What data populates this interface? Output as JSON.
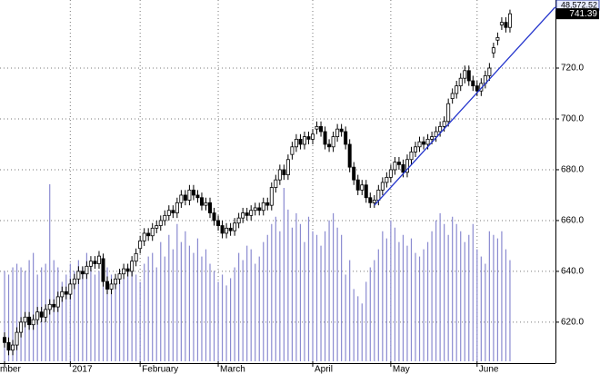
{
  "chart_data": {
    "type": "candlestick",
    "top_label": "48,572.52",
    "last_label": "741.39",
    "categories": [
      "mber",
      null,
      null,
      null,
      null,
      null,
      null,
      null,
      null,
      null,
      null,
      null,
      null,
      null,
      null,
      null,
      "2017",
      null,
      null,
      null,
      null,
      null,
      null,
      null,
      null,
      null,
      null,
      null,
      null,
      null,
      null,
      null,
      null,
      "February",
      null,
      null,
      null,
      null,
      null,
      null,
      null,
      null,
      null,
      null,
      null,
      null,
      null,
      null,
      null,
      null,
      null,
      null,
      "March",
      null,
      null,
      null,
      null,
      null,
      null,
      null,
      null,
      null,
      null,
      null,
      null,
      null,
      null,
      null,
      null,
      null,
      null,
      null,
      null,
      null,
      null,
      "April",
      null,
      null,
      null,
      null,
      null,
      null,
      null,
      null,
      null,
      null,
      null,
      null,
      null,
      null,
      null,
      null,
      null,
      null,
      "May",
      null,
      null,
      null,
      null,
      null,
      null,
      null,
      null,
      null,
      null,
      null,
      null,
      null,
      null,
      null,
      null,
      null,
      null,
      null,
      null,
      "June",
      null,
      null,
      null,
      null,
      null,
      null,
      null,
      null
    ],
    "open": [
      614,
      612,
      609,
      611,
      616,
      620,
      622,
      619,
      621,
      624,
      622,
      625,
      627,
      626,
      630,
      632,
      631,
      635,
      637,
      640,
      639,
      642,
      644,
      643,
      645,
      636,
      633,
      635,
      637,
      639,
      641,
      640,
      644,
      649,
      652,
      655,
      654,
      657,
      658,
      660,
      662,
      664,
      663,
      667,
      670,
      668,
      672,
      670,
      669,
      666,
      667,
      663,
      660,
      658,
      655,
      657,
      656,
      659,
      661,
      663,
      662,
      664,
      665,
      664,
      667,
      666,
      673,
      676,
      680,
      678,
      686,
      689,
      692,
      690,
      693,
      692,
      696,
      697,
      695,
      690,
      689,
      693,
      696,
      695,
      690,
      681,
      676,
      672,
      674,
      669,
      667,
      668,
      672,
      675,
      677,
      680,
      683,
      682,
      679,
      684,
      687,
      689,
      691,
      690,
      692,
      693,
      695,
      697,
      699,
      708,
      710,
      713,
      716,
      719,
      715,
      713,
      711,
      714,
      717,
      726,
      731,
      737,
      738,
      736
    ],
    "high": [
      616,
      614,
      613,
      618,
      622,
      624,
      624,
      623,
      626,
      626,
      627,
      629,
      629,
      632,
      634,
      634,
      637,
      639,
      642,
      642,
      644,
      646,
      646,
      648,
      647,
      638,
      637,
      639,
      641,
      643,
      643,
      646,
      649,
      654,
      657,
      657,
      659,
      660,
      662,
      664,
      666,
      666,
      669,
      672,
      672,
      674,
      674,
      672,
      671,
      669,
      669,
      665,
      662,
      660,
      659,
      659,
      661,
      663,
      665,
      665,
      666,
      667,
      667,
      669,
      669,
      675,
      678,
      682,
      682,
      686,
      691,
      694,
      694,
      695,
      695,
      696,
      699,
      699,
      697,
      692,
      695,
      698,
      698,
      697,
      692,
      683,
      678,
      676,
      676,
      671,
      670,
      674,
      677,
      679,
      682,
      685,
      685,
      684,
      686,
      689,
      691,
      693,
      693,
      694,
      695,
      697,
      699,
      701,
      708,
      712,
      715,
      718,
      721,
      721,
      717,
      715,
      716,
      719,
      722,
      730,
      734,
      740,
      740,
      743
    ],
    "low": [
      610,
      607,
      607,
      609,
      614,
      618,
      617,
      617,
      619,
      620,
      620,
      623,
      624,
      624,
      628,
      629,
      629,
      633,
      635,
      637,
      637,
      640,
      641,
      641,
      634,
      631,
      631,
      633,
      635,
      637,
      638,
      638,
      642,
      647,
      650,
      652,
      652,
      655,
      656,
      658,
      660,
      661,
      661,
      665,
      666,
      666,
      668,
      667,
      664,
      664,
      661,
      658,
      656,
      653,
      653,
      654,
      654,
      657,
      659,
      660,
      660,
      662,
      662,
      662,
      664,
      664,
      671,
      674,
      676,
      676,
      684,
      687,
      688,
      688,
      690,
      690,
      694,
      693,
      688,
      687,
      687,
      691,
      693,
      688,
      679,
      674,
      670,
      670,
      667,
      665,
      665,
      666,
      670,
      673,
      675,
      678,
      680,
      677,
      677,
      682,
      685,
      687,
      688,
      688,
      690,
      691,
      693,
      695,
      697,
      706,
      708,
      711,
      714,
      713,
      711,
      709,
      709,
      712,
      715,
      724,
      729,
      735,
      734,
      734
    ],
    "close": [
      612,
      609,
      611,
      616,
      620,
      622,
      619,
      621,
      624,
      622,
      625,
      627,
      626,
      630,
      632,
      631,
      635,
      637,
      640,
      639,
      642,
      644,
      643,
      646,
      636,
      633,
      635,
      637,
      639,
      641,
      640,
      644,
      647,
      652,
      655,
      654,
      657,
      658,
      660,
      662,
      664,
      663,
      667,
      670,
      668,
      672,
      670,
      669,
      666,
      667,
      663,
      660,
      658,
      655,
      657,
      656,
      659,
      661,
      663,
      662,
      664,
      665,
      664,
      667,
      666,
      673,
      676,
      680,
      678,
      684,
      689,
      692,
      690,
      693,
      692,
      694,
      697,
      695,
      690,
      689,
      693,
      696,
      695,
      690,
      681,
      676,
      672,
      674,
      669,
      667,
      668,
      672,
      675,
      677,
      680,
      683,
      682,
      679,
      684,
      687,
      689,
      691,
      690,
      692,
      693,
      695,
      697,
      699,
      706,
      710,
      713,
      716,
      719,
      715,
      713,
      711,
      714,
      717,
      720,
      728,
      732,
      738,
      736,
      741.39
    ],
    "volume": [
      25,
      24,
      26,
      27,
      26,
      25,
      28,
      30,
      24,
      26,
      27,
      49,
      28,
      26,
      22,
      24,
      27,
      25,
      28,
      26,
      30,
      27,
      24,
      25,
      29,
      26,
      24,
      22,
      25,
      23,
      26,
      28,
      24,
      22,
      27,
      29,
      30,
      26,
      33,
      29,
      35,
      31,
      38,
      33,
      36,
      32,
      30,
      34,
      29,
      31,
      27,
      25,
      22,
      24,
      21,
      23,
      26,
      30,
      28,
      32,
      31,
      27,
      29,
      33,
      35,
      38,
      40,
      36,
      48,
      42,
      37,
      41,
      38,
      33,
      40,
      36,
      35,
      32,
      36,
      39,
      41,
      37,
      35,
      24,
      28,
      20,
      18,
      16,
      22,
      26,
      28,
      31,
      36,
      34,
      39,
      37,
      33,
      35,
      32,
      34,
      30,
      29,
      31,
      33,
      36,
      39,
      41,
      38,
      35,
      40,
      38,
      36,
      33,
      35,
      38,
      31,
      29,
      27,
      36,
      35,
      34,
      36,
      31,
      28
    ],
    "volume_color": "#8a8ad0",
    "y2lim": [
      0,
      100
    ],
    "ylim": [
      604.6,
      746.8
    ],
    "yticks": [
      {
        "value": 620,
        "label": "620.0"
      },
      {
        "value": 640,
        "label": "640.0"
      },
      {
        "value": 660,
        "label": "660.0"
      },
      {
        "value": 680,
        "label": "680.0"
      },
      {
        "value": 700,
        "label": "700.0"
      },
      {
        "value": 720,
        "label": "720.0"
      }
    ],
    "grid": true,
    "trendline": {
      "x0": 90,
      "y0": 666,
      "x1": 134,
      "y1": 744,
      "color": "#2233cc"
    }
  }
}
